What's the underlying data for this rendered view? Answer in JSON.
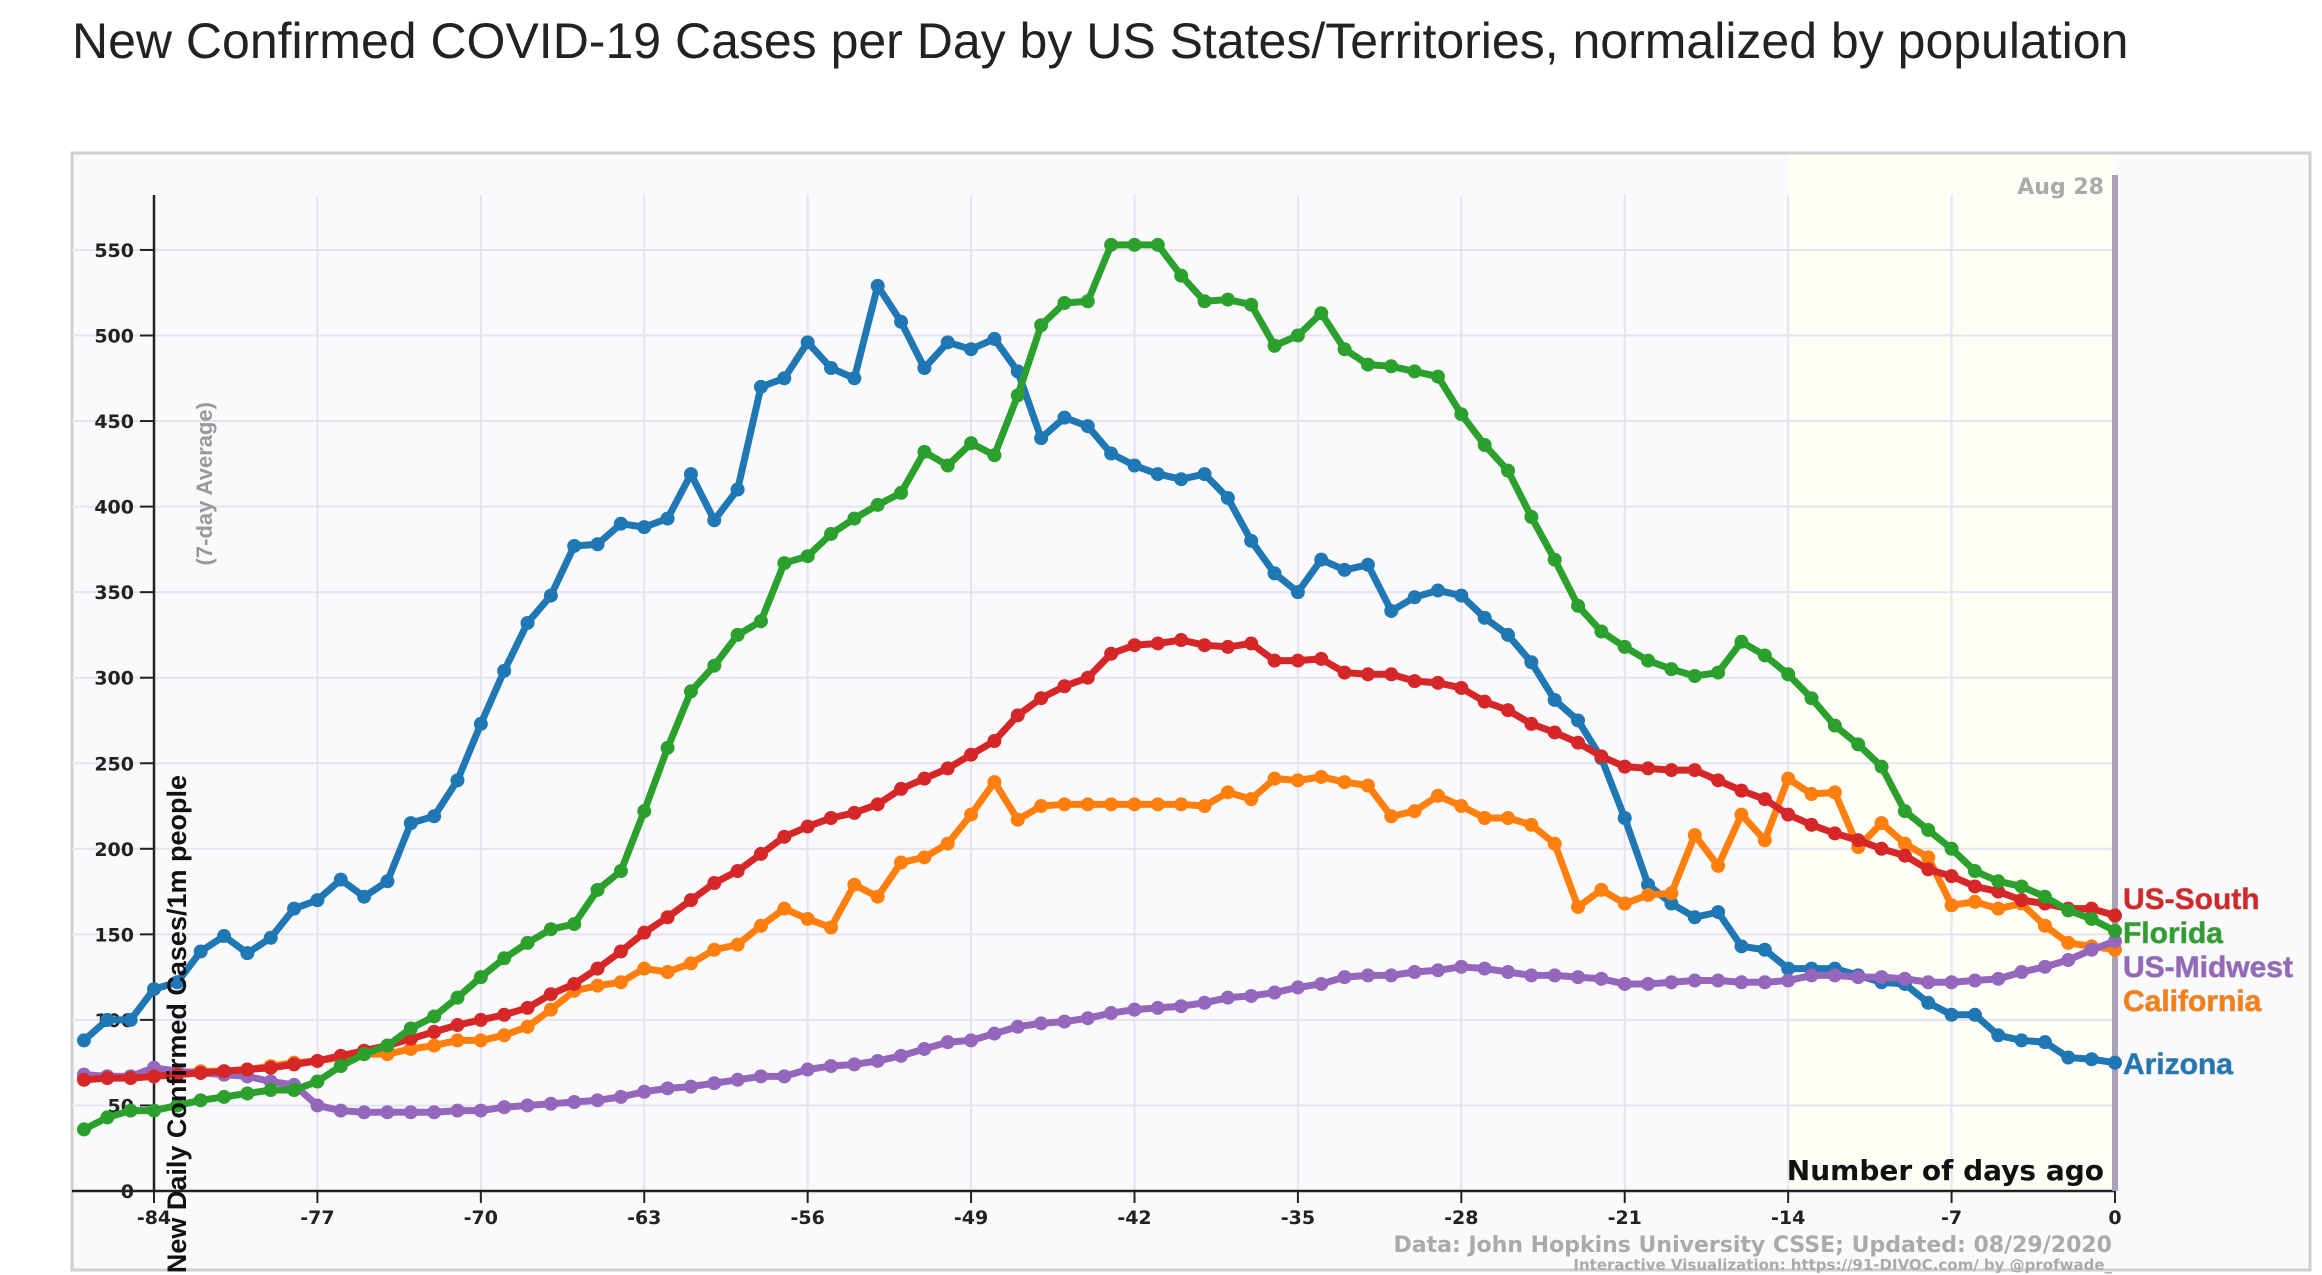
{
  "chart_data": {
    "type": "line",
    "title": "New Confirmed COVID-19 Cases per Day by US States/Territories, normalized by population",
    "xlabel": "Number of days ago",
    "ylabel": "New Daily Confirmed Cases/1m people",
    "ylabel_sub": "(7-day Average)",
    "date_marker": "Aug 28",
    "source": "Data: John Hopkins University CSSE; Updated: 08/29/2020",
    "credit": "Interactive Visualization: https://91-DIVOC.com/ by @profwade_",
    "xlim": [
      -87.5,
      0
    ],
    "ylim": [
      0,
      580
    ],
    "x_ticks": [
      -84,
      -77,
      -70,
      -63,
      -56,
      -49,
      -42,
      -35,
      -28,
      -21,
      -14,
      -7,
      0
    ],
    "y_ticks": [
      0,
      50,
      100,
      150,
      200,
      250,
      300,
      350,
      400,
      450,
      500,
      550
    ],
    "grid": true,
    "x_start": -87,
    "series": [
      {
        "name": "US-South",
        "color": "#d62728",
        "values": [
          65,
          66,
          66,
          67,
          68,
          69,
          70,
          71,
          72,
          74,
          76,
          79,
          82,
          85,
          89,
          93,
          97,
          100,
          103,
          107,
          115,
          121,
          130,
          140,
          151,
          160,
          170,
          180,
          187,
          197,
          207,
          213,
          218,
          221,
          226,
          235,
          241,
          247,
          255,
          263,
          278,
          288,
          295,
          300,
          314,
          319,
          320,
          322,
          319,
          318,
          320,
          310,
          310,
          311,
          303,
          302,
          302,
          298,
          297,
          294,
          286,
          281,
          273,
          268,
          262,
          254,
          248,
          247,
          246,
          246,
          240,
          234,
          229,
          220,
          214,
          209,
          205,
          200,
          196,
          188,
          184,
          178,
          175,
          170,
          168,
          165,
          165,
          161
        ]
      },
      {
        "name": "Florida",
        "color": "#2ca02c",
        "values": [
          36,
          43,
          47,
          47,
          50,
          53,
          55,
          57,
          59,
          59,
          64,
          73,
          80,
          85,
          95,
          102,
          113,
          125,
          136,
          145,
          153,
          156,
          176,
          187,
          222,
          259,
          292,
          307,
          325,
          333,
          367,
          371,
          384,
          393,
          401,
          408,
          432,
          424,
          437,
          430,
          465,
          506,
          519,
          520,
          553,
          553,
          553,
          535,
          520,
          521,
          518,
          494,
          500,
          513,
          492,
          483,
          482,
          479,
          476,
          454,
          436,
          421,
          394,
          369,
          342,
          327,
          318,
          310,
          305,
          301,
          303,
          321,
          313,
          302,
          288,
          272,
          261,
          248,
          222,
          211,
          200,
          187,
          181,
          178,
          172,
          164,
          159,
          152
        ]
      },
      {
        "name": "US-Midwest",
        "color": "#9467bd",
        "values": [
          68,
          67,
          67,
          72,
          70,
          69,
          68,
          67,
          64,
          62,
          50,
          47,
          46,
          46,
          46,
          46,
          47,
          47,
          49,
          50,
          51,
          52,
          53,
          55,
          58,
          60,
          61,
          63,
          65,
          67,
          67,
          71,
          73,
          74,
          76,
          79,
          83,
          87,
          88,
          92,
          96,
          98,
          99,
          101,
          104,
          106,
          107,
          108,
          110,
          113,
          114,
          116,
          119,
          121,
          125,
          126,
          126,
          128,
          129,
          131,
          130,
          128,
          126,
          126,
          125,
          124,
          121,
          121,
          122,
          123,
          123,
          122,
          122,
          123,
          126,
          126,
          125,
          125,
          124,
          122,
          122,
          123,
          124,
          128,
          131,
          135,
          141,
          146
        ]
      },
      {
        "name": "California",
        "color": "#ff7f0e",
        "values": [
          66,
          67,
          67,
          67,
          69,
          70,
          70,
          71,
          73,
          75,
          76,
          78,
          80,
          80,
          83,
          85,
          88,
          88,
          91,
          96,
          106,
          117,
          120,
          122,
          130,
          128,
          133,
          141,
          144,
          155,
          165,
          159,
          154,
          179,
          172,
          192,
          195,
          203,
          220,
          239,
          217,
          225,
          226,
          226,
          226,
          226,
          226,
          226,
          225,
          233,
          229,
          241,
          240,
          242,
          239,
          237,
          219,
          222,
          231,
          225,
          218,
          218,
          214,
          203,
          166,
          176,
          168,
          173,
          174,
          208,
          190,
          220,
          205,
          241,
          232,
          233,
          201,
          215,
          203,
          195,
          167,
          169,
          165,
          168,
          155,
          145,
          143,
          141
        ]
      },
      {
        "name": "Arizona",
        "color": "#1f77b4",
        "values": [
          88,
          100,
          100,
          118,
          122,
          140,
          149,
          139,
          148,
          165,
          170,
          182,
          172,
          181,
          215,
          219,
          240,
          273,
          304,
          332,
          348,
          377,
          378,
          390,
          388,
          393,
          419,
          392,
          410,
          470,
          475,
          496,
          481,
          475,
          529,
          508,
          481,
          496,
          492,
          498,
          479,
          440,
          452,
          447,
          431,
          424,
          419,
          416,
          419,
          405,
          380,
          361,
          350,
          369,
          363,
          366,
          339,
          347,
          351,
          348,
          335,
          325,
          309,
          287,
          275,
          253,
          218,
          179,
          168,
          160,
          163,
          143,
          141,
          130,
          130,
          130,
          126,
          122,
          121,
          110,
          103,
          103,
          91,
          88,
          87,
          78,
          77,
          75
        ]
      }
    ]
  }
}
